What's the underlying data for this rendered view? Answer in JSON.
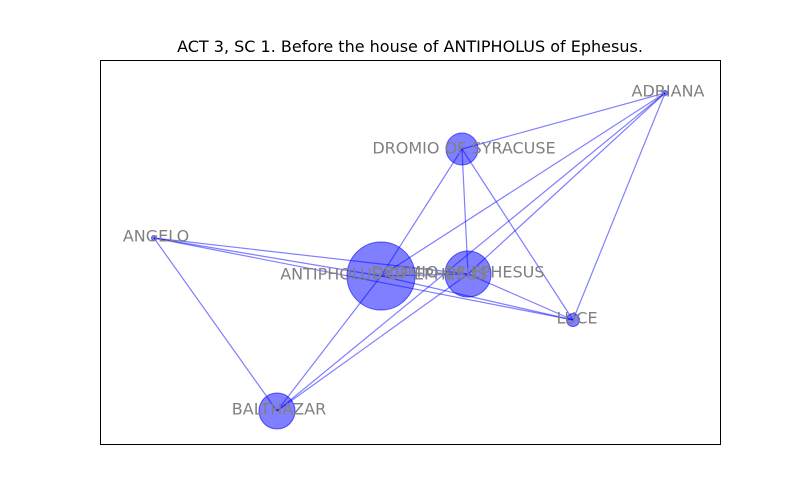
{
  "title": "ACT 3, SC 1. Before the house of ANTIPHOLUS of Ephesus.",
  "colors": {
    "node": "#0000ff",
    "edge": "#0000ff",
    "label": "#808080",
    "frame": "#000000"
  },
  "nodes": [
    {
      "id": "ADRIANA",
      "label": "ADRIANA"
    },
    {
      "id": "DROMIO OF SYRACUSE",
      "label": "DROMIO OF SYRACUSE"
    },
    {
      "id": "ANGELO",
      "label": "ANGELO"
    },
    {
      "id": "ANTIPHOLUS OF EPHESUS",
      "label": "ANTIPHOLUS OF EPHESUS"
    },
    {
      "id": "DROMIO OF EPHESUS",
      "label": "DROMIO OF EPHESUS"
    },
    {
      "id": "LUCE",
      "label": "LUCE"
    },
    {
      "id": "BALTHAZAR",
      "label": "BALTHAZAR"
    }
  ],
  "edges": [
    [
      "ADRIANA",
      "ANTIPHOLUS OF EPHESUS"
    ],
    [
      "ADRIANA",
      "DROMIO OF EPHESUS"
    ],
    [
      "ADRIANA",
      "DROMIO OF SYRACUSE"
    ],
    [
      "ADRIANA",
      "LUCE"
    ],
    [
      "ADRIANA",
      "BALTHAZAR"
    ],
    [
      "DROMIO OF SYRACUSE",
      "ANTIPHOLUS OF EPHESUS"
    ],
    [
      "DROMIO OF SYRACUSE",
      "DROMIO OF EPHESUS"
    ],
    [
      "DROMIO OF SYRACUSE",
      "LUCE"
    ],
    [
      "ANGELO",
      "ANTIPHOLUS OF EPHESUS"
    ],
    [
      "ANGELO",
      "DROMIO OF EPHESUS"
    ],
    [
      "ANGELO",
      "LUCE"
    ],
    [
      "ANGELO",
      "BALTHAZAR"
    ],
    [
      "ANTIPHOLUS OF EPHESUS",
      "DROMIO OF EPHESUS"
    ],
    [
      "ANTIPHOLUS OF EPHESUS",
      "LUCE"
    ],
    [
      "ANTIPHOLUS OF EPHESUS",
      "BALTHAZAR"
    ],
    [
      "DROMIO OF EPHESUS",
      "LUCE"
    ],
    [
      "DROMIO OF EPHESUS",
      "BALTHAZAR"
    ]
  ]
}
